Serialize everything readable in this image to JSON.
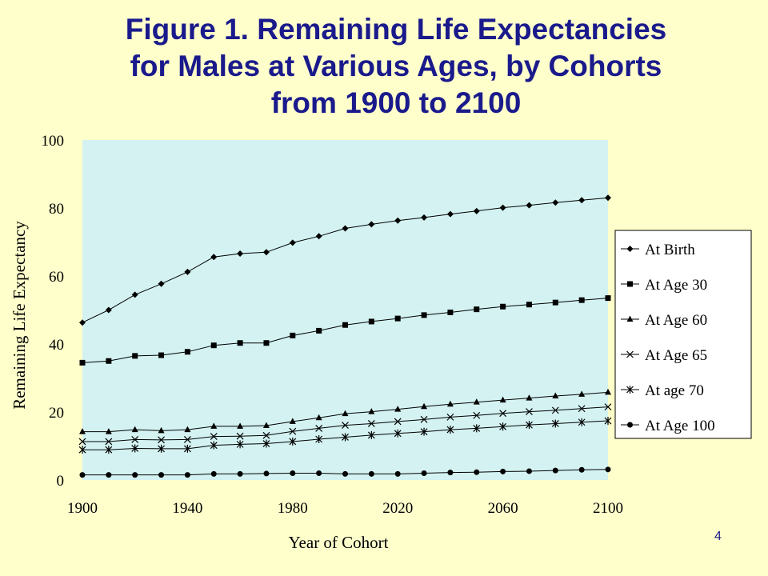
{
  "slide": {
    "title_lines": [
      "Figure 1.  Remaining Life Expectancies",
      "for Males at Various Ages, by Cohorts",
      "from 1900 to 2100"
    ],
    "page_number": "4"
  },
  "colors": {
    "background": "#ffffcc",
    "plot_area": "#d4f2f2",
    "title": "#1a1a8c",
    "series": "#000000"
  },
  "chart_data": {
    "type": "line",
    "xlabel": "Year of Cohort",
    "ylabel": "Remaining Life Expectancy",
    "xlim": [
      1900,
      2100
    ],
    "ylim": [
      0,
      100
    ],
    "x_ticks": [
      "1900",
      "1940",
      "1980",
      "2020",
      "2060",
      "2100"
    ],
    "y_ticks": [
      "0",
      "20",
      "40",
      "60",
      "80",
      "100"
    ],
    "grid": false,
    "legend_position": "right",
    "x": [
      1900,
      1910,
      1920,
      1930,
      1940,
      1950,
      1960,
      1970,
      1980,
      1990,
      2000,
      2010,
      2020,
      2030,
      2040,
      2050,
      2060,
      2070,
      2080,
      2090,
      2100
    ],
    "series": [
      {
        "name": "At Birth",
        "marker": "diamond",
        "values": [
          46.3,
          50.0,
          54.5,
          57.7,
          61.2,
          65.6,
          66.6,
          67.0,
          69.8,
          71.7,
          74.0,
          75.2,
          76.3,
          77.2,
          78.2,
          79.1,
          80.1,
          80.8,
          81.6,
          82.3,
          83.0
        ]
      },
      {
        "name": "At Age 30",
        "marker": "square",
        "values": [
          34.5,
          35.0,
          36.5,
          36.7,
          37.7,
          39.6,
          40.3,
          40.3,
          42.5,
          43.9,
          45.6,
          46.6,
          47.5,
          48.5,
          49.3,
          50.2,
          51.0,
          51.6,
          52.2,
          52.9,
          53.5
        ]
      },
      {
        "name": "At Age 60",
        "marker": "triangle",
        "values": [
          14.2,
          14.2,
          14.8,
          14.5,
          14.8,
          15.8,
          15.8,
          16.0,
          17.2,
          18.3,
          19.5,
          20.1,
          20.8,
          21.6,
          22.3,
          22.9,
          23.5,
          24.1,
          24.7,
          25.2,
          25.8
        ]
      },
      {
        "name": "At Age 65",
        "marker": "x",
        "values": [
          11.3,
          11.3,
          11.9,
          11.8,
          11.9,
          12.8,
          12.9,
          13.1,
          14.3,
          15.2,
          16.1,
          16.6,
          17.2,
          17.8,
          18.5,
          19.0,
          19.6,
          20.1,
          20.5,
          21.0,
          21.5
        ]
      },
      {
        "name": "At age 70",
        "marker": "star",
        "values": [
          8.9,
          8.9,
          9.3,
          9.2,
          9.2,
          10.2,
          10.5,
          10.7,
          11.3,
          12.0,
          12.6,
          13.2,
          13.7,
          14.2,
          14.8,
          15.2,
          15.7,
          16.2,
          16.6,
          17.0,
          17.4
        ]
      },
      {
        "name": "At Age 100",
        "marker": "circle",
        "values": [
          1.5,
          1.5,
          1.5,
          1.5,
          1.5,
          1.8,
          1.8,
          1.9,
          2.0,
          2.0,
          1.8,
          1.8,
          1.8,
          2.0,
          2.2,
          2.3,
          2.5,
          2.6,
          2.8,
          3.0,
          3.1
        ]
      }
    ]
  }
}
